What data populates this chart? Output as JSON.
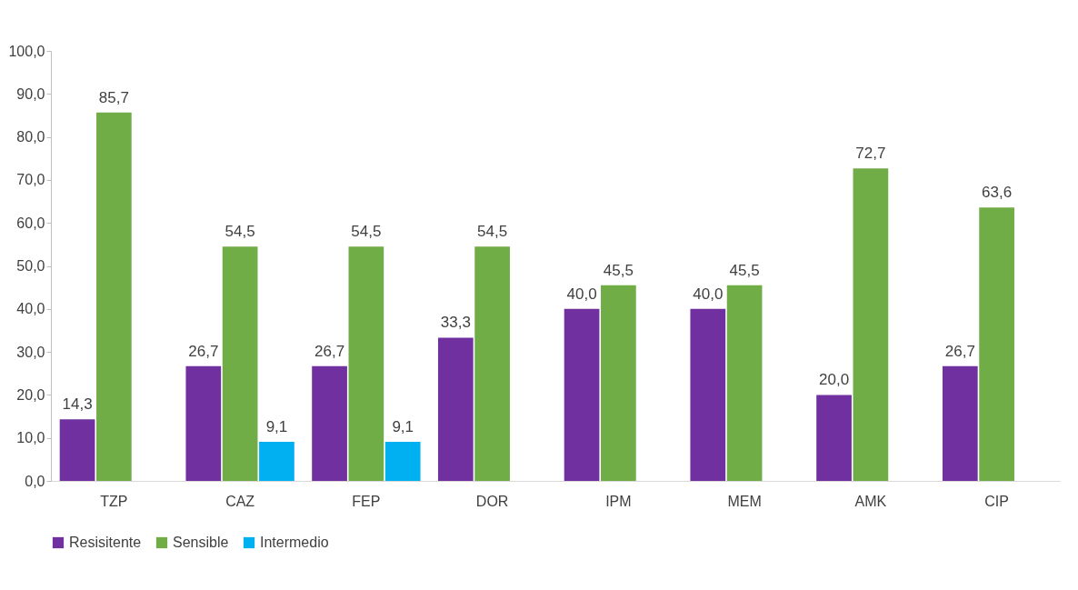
{
  "chart_data": {
    "type": "bar",
    "categories": [
      "TZP",
      "CAZ",
      "FEP",
      "DOR",
      "IPM",
      "MEM",
      "AMK",
      "CIP"
    ],
    "series": [
      {
        "name": "Resisitente",
        "color": "#7030a0",
        "values": [
          14.3,
          26.7,
          26.7,
          33.3,
          40.0,
          40.0,
          20.0,
          26.7
        ],
        "value_labels": [
          "14,3",
          "26,7",
          "26,7",
          "33,3",
          "40,0",
          "40,0",
          "20,0",
          "26,7"
        ]
      },
      {
        "name": "Sensible",
        "color": "#70ad47",
        "values": [
          85.7,
          54.5,
          54.5,
          54.5,
          45.5,
          45.5,
          72.7,
          63.6
        ],
        "value_labels": [
          "85,7",
          "54,5",
          "54,5",
          "54,5",
          "45,5",
          "45,5",
          "72,7",
          "63,6"
        ]
      },
      {
        "name": "Intermedio",
        "color": "#00b0f0",
        "values": [
          null,
          9.1,
          9.1,
          null,
          null,
          null,
          null,
          null
        ],
        "value_labels": [
          null,
          "9,1",
          "9,1",
          null,
          null,
          null,
          null,
          null
        ]
      }
    ],
    "ylim": [
      0,
      100
    ],
    "yticks": [
      {
        "value": 0,
        "label": "0,0"
      },
      {
        "value": 10,
        "label": "10,0"
      },
      {
        "value": 20,
        "label": "20,0"
      },
      {
        "value": 30,
        "label": "30,0"
      },
      {
        "value": 40,
        "label": "40,0"
      },
      {
        "value": 50,
        "label": "50,0"
      },
      {
        "value": 60,
        "label": "60,0"
      },
      {
        "value": 70,
        "label": "70,0"
      },
      {
        "value": 80,
        "label": "80,0"
      },
      {
        "value": 90,
        "label": "90,0"
      },
      {
        "value": 100,
        "label": "100,0"
      }
    ],
    "grid": false,
    "legend": "bottom"
  }
}
